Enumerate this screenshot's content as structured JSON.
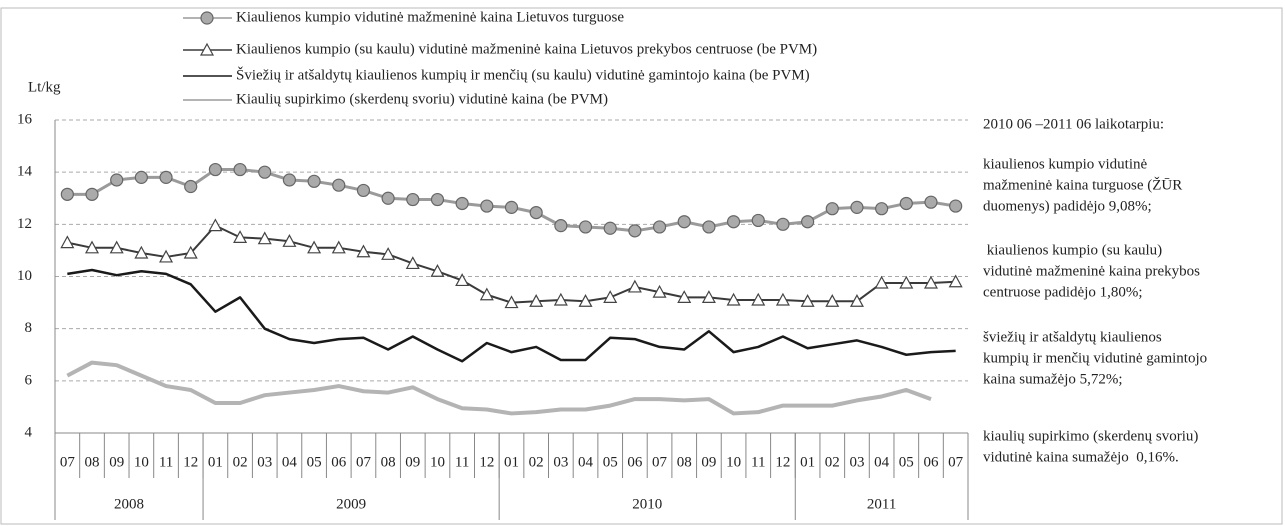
{
  "chart_data": {
    "type": "line",
    "y_label": "Lt/kg",
    "categories": [
      "07",
      "08",
      "09",
      "10",
      "11",
      "12",
      "01",
      "02",
      "03",
      "04",
      "05",
      "06",
      "07",
      "08",
      "09",
      "10",
      "11",
      "12",
      "01",
      "02",
      "03",
      "04",
      "05",
      "06",
      "07",
      "08",
      "09",
      "10",
      "11",
      "12",
      "01",
      "02",
      "03",
      "04",
      "05",
      "06",
      "07"
    ],
    "years": [
      "2008",
      "2009",
      "2010",
      "2011"
    ],
    "ylim": [
      4,
      16
    ],
    "yticks": [
      4,
      6,
      8,
      10,
      12,
      14,
      16
    ],
    "grid": true,
    "series": [
      {
        "name": "Kiaulienos kumpio vidutinė mažmeninė kaina Lietuvos turguose",
        "color": "#9a9a9a",
        "marker": "circle",
        "values": [
          13.15,
          13.15,
          13.7,
          13.8,
          13.8,
          13.45,
          14.1,
          14.1,
          14.0,
          13.7,
          13.65,
          13.5,
          13.3,
          13.0,
          12.95,
          12.95,
          12.8,
          12.7,
          12.65,
          12.45,
          11.95,
          11.9,
          11.85,
          11.75,
          11.9,
          12.1,
          11.9,
          12.1,
          12.15,
          12.0,
          12.1,
          12.6,
          12.65,
          12.6,
          12.8,
          12.85,
          12.7
        ]
      },
      {
        "name": "Kiaulienos kumpio (su kaulu) vidutinė mažmeninė kaina Lietuvos prekybos centruose (be PVM)",
        "color": "#3a3a3a",
        "marker": "triangle",
        "values": [
          11.3,
          11.1,
          11.1,
          10.9,
          10.75,
          10.9,
          11.95,
          11.5,
          11.45,
          11.35,
          11.1,
          11.1,
          10.95,
          10.85,
          10.5,
          10.2,
          9.85,
          9.3,
          9.0,
          9.05,
          9.1,
          9.05,
          9.2,
          9.6,
          9.4,
          9.2,
          9.2,
          9.1,
          9.1,
          9.1,
          9.05,
          9.05,
          9.05,
          9.75,
          9.75,
          9.75,
          9.8
        ]
      },
      {
        "name": "Šviežių ir atšaldytų kiaulienos kumpių ir menčių (su kaulu) vidutinė gamintojo kaina (be PVM)",
        "color": "#1a1a1a",
        "marker": "none",
        "values": [
          10.1,
          10.25,
          10.05,
          10.2,
          10.1,
          9.7,
          8.65,
          9.2,
          8.0,
          7.6,
          7.45,
          7.6,
          7.65,
          7.2,
          7.7,
          7.2,
          6.75,
          7.45,
          7.1,
          7.3,
          6.8,
          6.8,
          7.65,
          7.6,
          7.3,
          7.2,
          7.9,
          7.1,
          7.3,
          7.7,
          7.25,
          7.4,
          7.55,
          7.3,
          7.0,
          7.1,
          7.15
        ]
      },
      {
        "name": "Kiaulių supirkimo (skerdenų svoriu) vidutinė kaina (be PVM)",
        "color": "#b4b4b4",
        "marker": "none",
        "values": [
          6.2,
          6.7,
          6.6,
          6.2,
          5.8,
          5.65,
          5.15,
          5.15,
          5.45,
          5.55,
          5.65,
          5.8,
          5.6,
          5.55,
          5.75,
          5.3,
          4.95,
          4.9,
          4.75,
          4.8,
          4.9,
          4.9,
          5.05,
          5.3,
          5.3,
          5.25,
          5.3,
          4.75,
          4.8,
          5.05,
          5.05,
          5.05,
          5.25,
          5.4,
          5.65,
          5.3,
          null
        ]
      }
    ],
    "annotations": [
      [
        "2010 06 –2011 06 laikotarpiu:"
      ],
      [
        "kiaulienos kumpio vidutinė",
        "mažmeninė kaina turguose (ŽŪR",
        "duomenys) padidėjo 9,08%;"
      ],
      [
        " kiaulienos kumpio (su kaulu)",
        "vidutinė mažmeninė kaina prekybos",
        "centruose padidėjo 1,80%;"
      ],
      [
        "šviežių ir atšaldytų kiaulienos",
        "kumpių ir menčių vidutinė gamintojo",
        "kaina sumažėjo 5,72%;"
      ],
      [
        "kiaulių supirkimo (skerdenų svoriu)",
        "vidutinė kaina sumažėjo  0,16%."
      ]
    ]
  }
}
